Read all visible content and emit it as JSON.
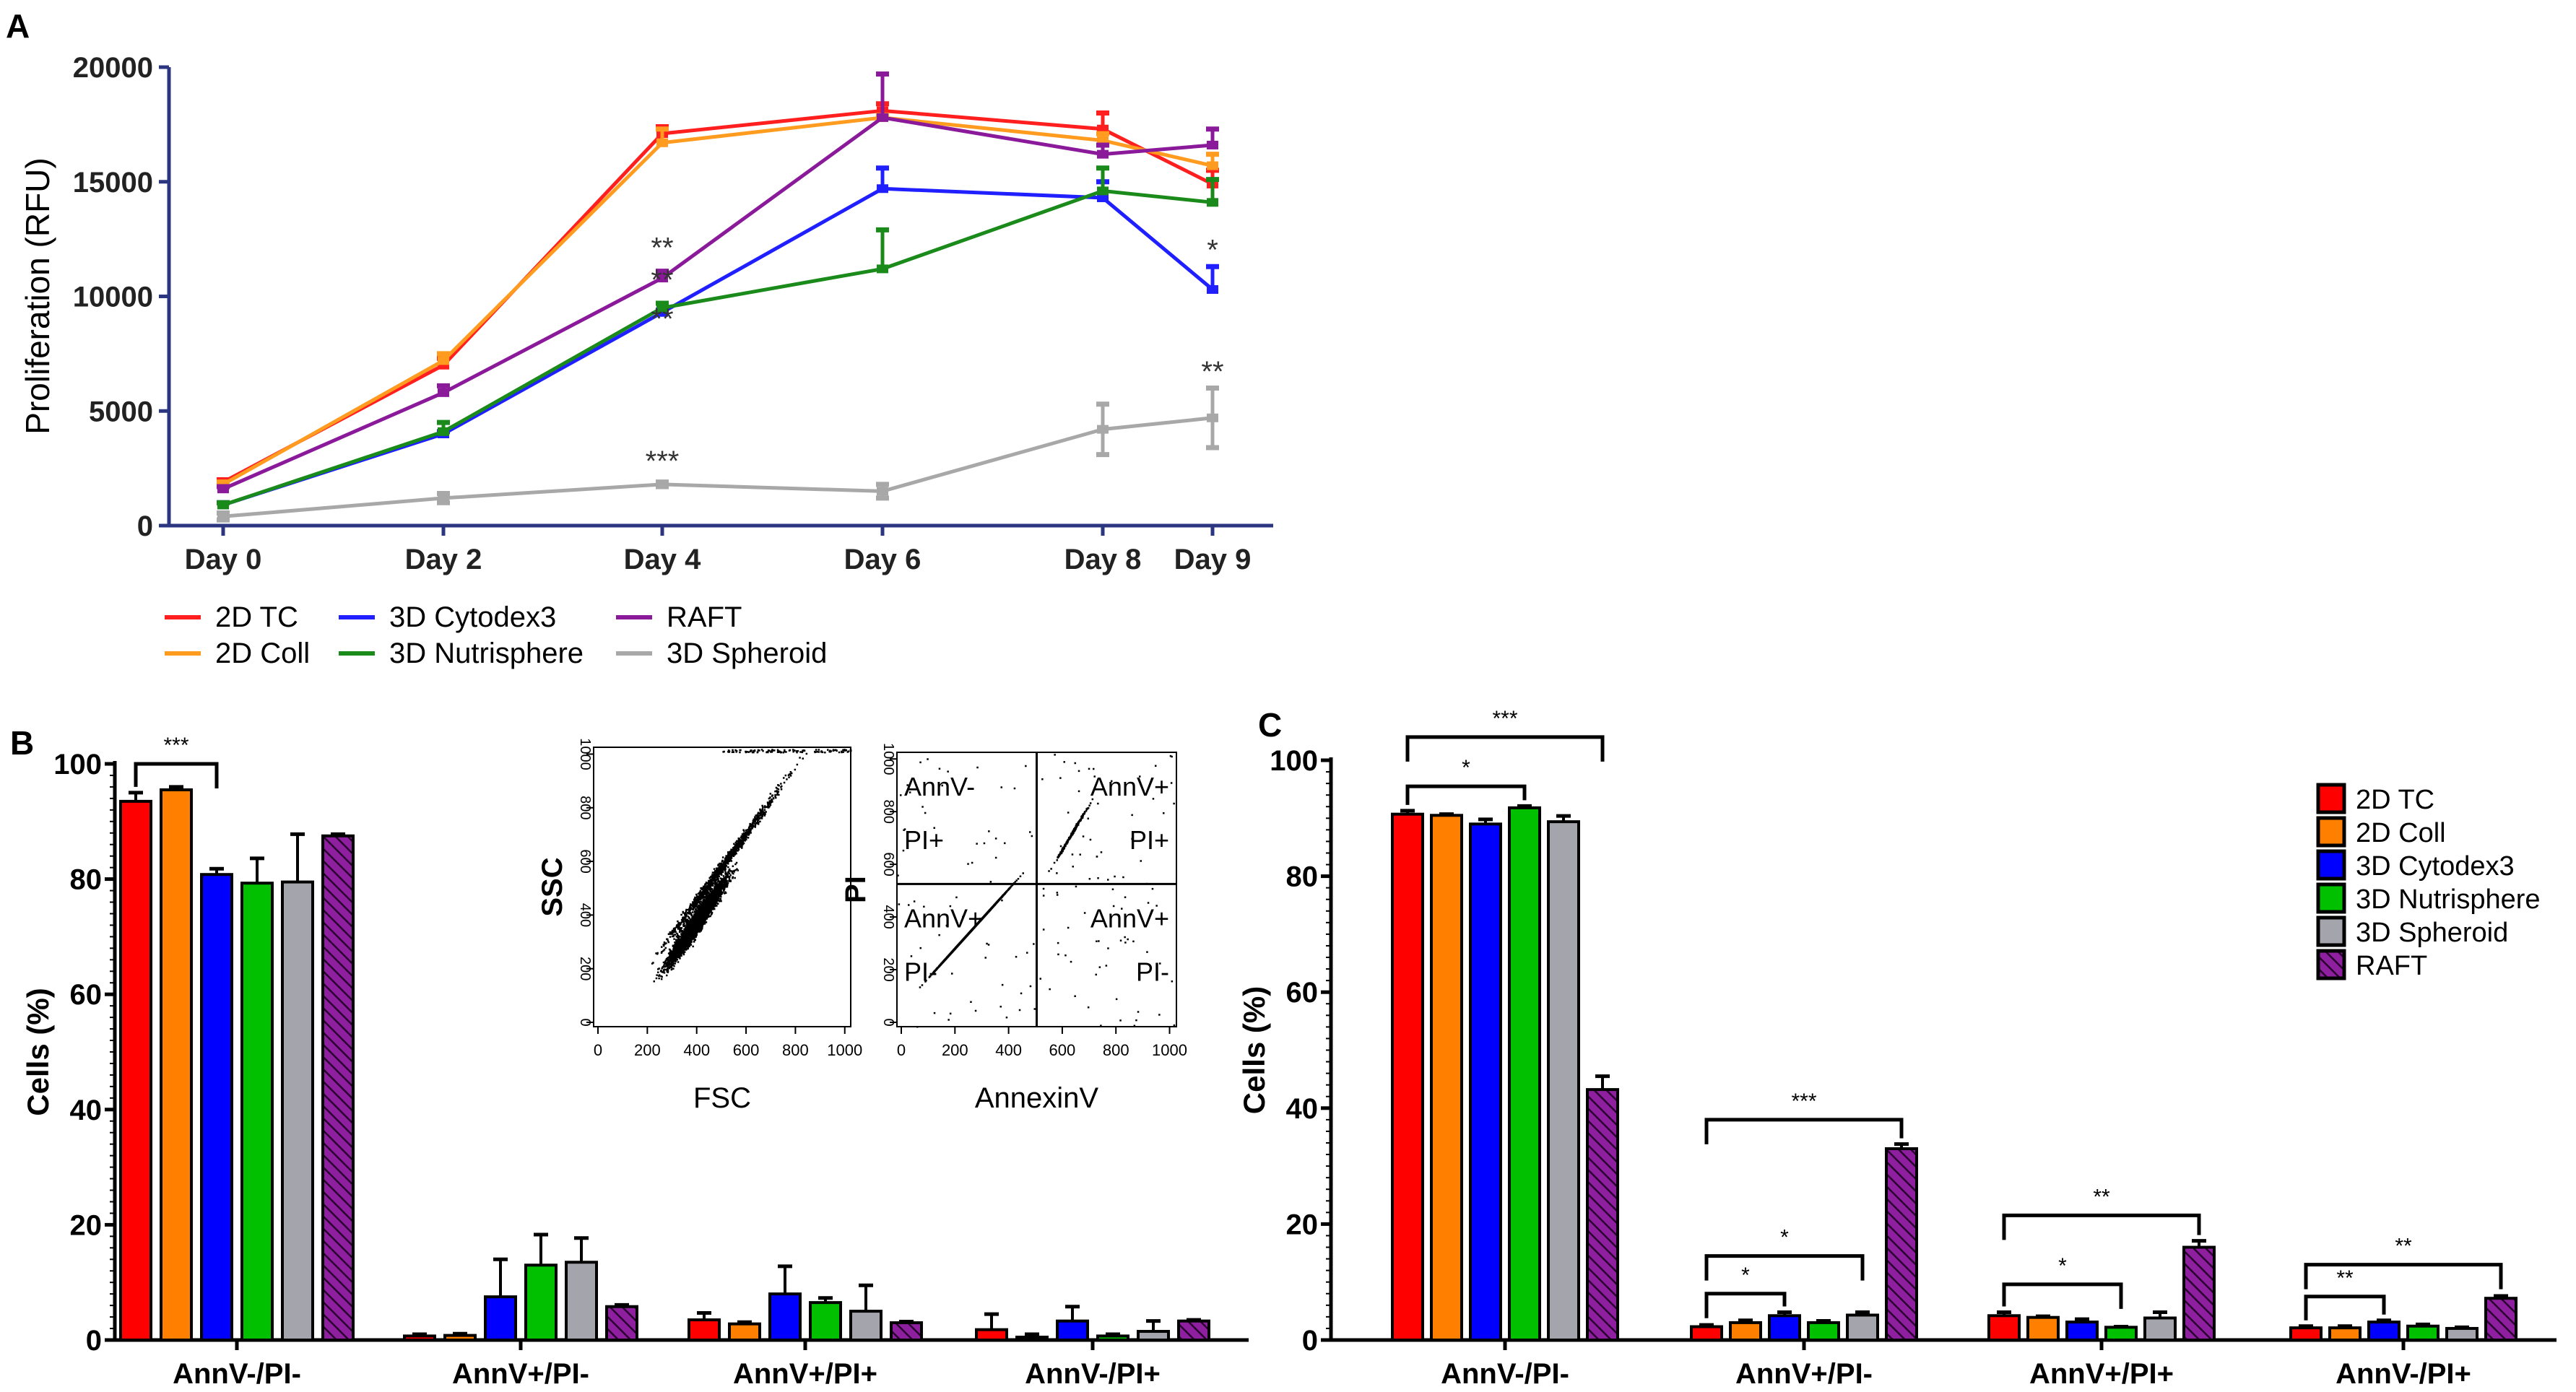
{
  "colors": {
    "2D TC": "#ff0000",
    "2D Coll": "#ff8000",
    "3D Cytodex3": "#0000ff",
    "3D Nutrisphere": "#00c000",
    "3D Spheroid": "#a4a4ac",
    "RAFT": "#800080"
  },
  "line_colors": {
    "2D TC": "#ff1f1f",
    "2D Coll": "#ff9c1f",
    "3D Cytodex3": "#1f1fff",
    "3D Nutrisphere": "#1a8a1a",
    "3D Spheroid": "#a8a8a8",
    "RAFT": "#8a1a9a"
  },
  "chart_data": [
    {
      "panel": "A",
      "type": "line",
      "xlabel": "",
      "ylabel": "Proliferation (RFU)",
      "ylim": [
        0,
        20000
      ],
      "yticks": [
        "0",
        "5000",
        "10000",
        "15000",
        "20000"
      ],
      "x": [
        0,
        2,
        4,
        6,
        8,
        9
      ],
      "categories": [
        "Day 0",
        "Day 2",
        "Day 4",
        "Day 6",
        "Day 8",
        "Day 9"
      ],
      "series": [
        {
          "name": "2D TC",
          "values": [
            1900,
            7000,
            17100,
            18100,
            17300,
            14900
          ],
          "err": [
            100,
            300,
            300,
            300,
            700,
            600
          ]
        },
        {
          "name": "2D Coll",
          "values": [
            1800,
            7200,
            16700,
            17800,
            16800,
            15700
          ],
          "err": [
            100,
            300,
            600,
            100,
            300,
            500
          ]
        },
        {
          "name": "3D Cytodex3",
          "values": [
            900,
            4000,
            9300,
            14700,
            14300,
            10300
          ],
          "err": [
            100,
            100,
            100,
            900,
            700,
            1000
          ]
        },
        {
          "name": "3D Nutrisphere",
          "values": [
            900,
            4100,
            9500,
            11200,
            14600,
            14100
          ],
          "err": [
            100,
            400,
            200,
            1700,
            1000,
            1000
          ]
        },
        {
          "name": "RAFT",
          "values": [
            1600,
            5800,
            10800,
            17800,
            16200,
            16600
          ],
          "err": [
            100,
            300,
            300,
            1900,
            400,
            700
          ]
        },
        {
          "name": "3D Spheroid",
          "values": [
            400,
            1200,
            1800,
            1500,
            4200,
            4700
          ],
          "err": [
            150,
            200,
            100,
            300,
            1100,
            1300
          ],
          "symmetric": true
        }
      ],
      "annotations": [
        {
          "text": "**",
          "x": 4,
          "y": 11700
        },
        {
          "text": "**",
          "x": 4,
          "y": 10300
        },
        {
          "text": "**",
          "x": 4,
          "y": 8600
        },
        {
          "text": "***",
          "x": 4,
          "y": 2400
        },
        {
          "text": "*",
          "x": 9,
          "y": 11600
        },
        {
          "text": "**",
          "x": 9,
          "y": 6300
        }
      ],
      "legend": {
        "placement": "bottom",
        "entries": [
          "2D TC",
          "2D Coll",
          "3D Cytodex3",
          "3D Nutrisphere",
          "RAFT",
          "3D Spheroid"
        ]
      }
    },
    {
      "panel": "B",
      "type": "bar",
      "ylabel": "Cells (%)",
      "ylim": [
        0,
        100
      ],
      "yticks": [
        "0",
        "20",
        "40",
        "60",
        "80",
        "100"
      ],
      "categories": [
        "AnnV-/PI-",
        "AnnV+/PI-",
        "AnnV+/PI+",
        "AnnV-/PI+"
      ],
      "series": [
        {
          "name": "2D TC",
          "values": [
            93.5,
            0.7,
            3.5,
            1.8
          ],
          "err": [
            1.5,
            0.3,
            1.2,
            2.7
          ]
        },
        {
          "name": "2D Coll",
          "values": [
            95.5,
            0.8,
            2.8,
            0.5
          ],
          "err": [
            0.5,
            0.3,
            0.3,
            0.5
          ]
        },
        {
          "name": "3D Cytodex3",
          "values": [
            80.8,
            7.5,
            8.0,
            3.3
          ],
          "err": [
            1.0,
            6.5,
            4.8,
            2.5
          ]
        },
        {
          "name": "3D Nutrisphere",
          "values": [
            79.3,
            13.0,
            6.5,
            0.7
          ],
          "err": [
            4.3,
            5.3,
            0.8,
            0.3
          ]
        },
        {
          "name": "3D Spheroid",
          "values": [
            79.5,
            13.5,
            5.0,
            1.5
          ],
          "err": [
            8.3,
            4.2,
            4.5,
            1.8
          ]
        },
        {
          "name": "RAFT",
          "values": [
            87.5,
            5.8,
            3.0,
            3.3
          ],
          "err": [
            0.3,
            0.3,
            0.2,
            0.2
          ]
        }
      ],
      "brackets": [
        {
          "group": 0,
          "from": 0,
          "to": 2,
          "y": 100,
          "text": "***"
        }
      ],
      "insets": {
        "scatter": {
          "xlabel": "FSC",
          "ylabel": "SSC",
          "ticks": [
            "0",
            "200",
            "400",
            "600",
            "800",
            "1000"
          ]
        },
        "quadrant": {
          "xlabel": "AnnexinV",
          "ylabel": "PI",
          "ticks": [
            "0",
            "200",
            "400",
            "600",
            "800",
            "1000"
          ],
          "quadrants": {
            "ul": [
              "AnnV-",
              "PI+"
            ],
            "ur": [
              "AnnV+",
              "PI+"
            ],
            "ll": [
              "AnnV+",
              "PI-"
            ],
            "lr": [
              "AnnV+",
              "PI-"
            ]
          }
        }
      }
    },
    {
      "panel": "C",
      "type": "bar",
      "ylabel": "Cells (%)",
      "ylim": [
        0,
        100
      ],
      "yticks": [
        "0",
        "20",
        "40",
        "60",
        "80",
        "100"
      ],
      "categories": [
        "AnnV-/PI-",
        "AnnV+/PI-",
        "AnnV+/PI+",
        "AnnV-/PI+"
      ],
      "series": [
        {
          "name": "2D TC",
          "values": [
            90.7,
            2.3,
            4.2,
            2.1
          ],
          "err": [
            0.6,
            0.3,
            0.6,
            0.3
          ]
        },
        {
          "name": "2D Coll",
          "values": [
            90.5,
            3.0,
            3.9,
            2.1
          ],
          "err": [
            0.2,
            0.4,
            0.2,
            0.3
          ]
        },
        {
          "name": "3D Cytodex3",
          "values": [
            89.0,
            4.2,
            3.1,
            3.1
          ],
          "err": [
            0.8,
            0.6,
            0.5,
            0.3
          ]
        },
        {
          "name": "3D Nutrisphere",
          "values": [
            91.8,
            3.0,
            2.2,
            2.4
          ],
          "err": [
            0.3,
            0.3,
            0.1,
            0.3
          ]
        },
        {
          "name": "3D Spheroid",
          "values": [
            89.4,
            4.3,
            3.8,
            2.0
          ],
          "err": [
            1.0,
            0.5,
            1.0,
            0.2
          ]
        },
        {
          "name": "RAFT",
          "values": [
            43.2,
            33.0,
            16.0,
            7.2
          ],
          "err": [
            2.3,
            0.8,
            1.1,
            0.4
          ]
        }
      ],
      "brackets": [
        {
          "group": 0,
          "from": 0,
          "to": 3,
          "y": 95.5,
          "text": "*"
        },
        {
          "group": 0,
          "from": 0,
          "to": 5,
          "y": 104,
          "text": "***"
        },
        {
          "group": 1,
          "from": 0,
          "to": 5,
          "y": 38,
          "text": "***"
        },
        {
          "group": 1,
          "from": 0,
          "to": 4,
          "y": 14.5,
          "text": "*"
        },
        {
          "group": 1,
          "from": 0,
          "to": 2,
          "y": 8,
          "text": "*"
        },
        {
          "group": 2,
          "from": 0,
          "to": 5,
          "y": 21.5,
          "text": "**"
        },
        {
          "group": 2,
          "from": 0,
          "to": 3,
          "y": 9.6,
          "text": "*"
        },
        {
          "group": 3,
          "from": 0,
          "to": 5,
          "y": 13,
          "text": "**"
        },
        {
          "group": 3,
          "from": 0,
          "to": 2,
          "y": 7.5,
          "text": "**"
        }
      ],
      "legend": {
        "placement": "top-right",
        "entries": [
          "2D TC",
          "2D Coll",
          "3D Cytodex3",
          "3D Nutrisphere",
          "3D Spheroid",
          "RAFT"
        ]
      }
    }
  ],
  "panel_labels": [
    "A",
    "B",
    "C"
  ]
}
